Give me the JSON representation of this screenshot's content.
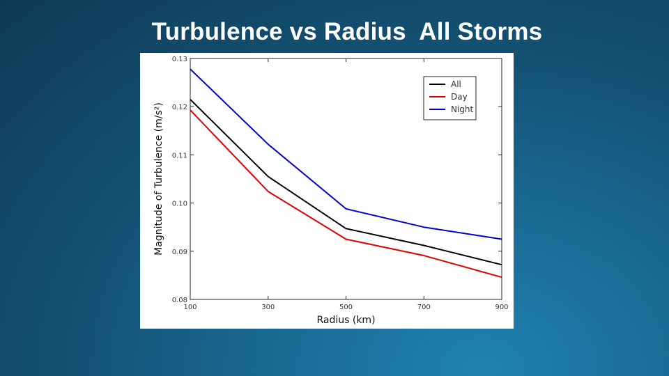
{
  "slide": {
    "title": "Turbulence vs Radius  All Storms"
  },
  "chart_data": {
    "type": "line",
    "x": [
      100,
      300,
      500,
      700,
      900
    ],
    "xlabel": "Radius (km)",
    "ylabel": "Magnitude of Turbulence (m/s²)",
    "xlim": [
      100,
      900
    ],
    "ylim": [
      0.08,
      0.13
    ],
    "xticks": [
      "100",
      "300",
      "500",
      "700",
      "900"
    ],
    "yticks": [
      "0.08",
      "0.09",
      "0.10",
      "0.11",
      "0.12",
      "0.13"
    ],
    "grid": false,
    "legend_position": "top-right",
    "series": [
      {
        "name": "All",
        "color": "#000000",
        "values": [
          0.1215,
          0.1055,
          0.0947,
          0.0912,
          0.0872
        ]
      },
      {
        "name": "Day",
        "color": "#e00000",
        "values": [
          0.1193,
          0.1024,
          0.0925,
          0.0891,
          0.0846
        ]
      },
      {
        "name": "Night",
        "color": "#0000cc",
        "values": [
          0.1278,
          0.1122,
          0.0988,
          0.095,
          0.0925
        ]
      }
    ]
  }
}
